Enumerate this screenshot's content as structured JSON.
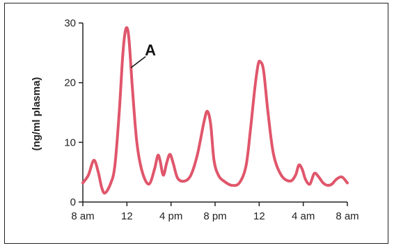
{
  "chart_data": {
    "type": "line",
    "title": "",
    "xlabel": "",
    "ylabel": "(ng/ml plasma)",
    "ylim": [
      0,
      30
    ],
    "xlim": [
      0,
      24
    ],
    "y_ticks": [
      0,
      10,
      20,
      30
    ],
    "x_ticks": [
      {
        "hour": 0,
        "label": "8 am"
      },
      {
        "hour": 4,
        "label": "12"
      },
      {
        "hour": 8,
        "label": "4 pm"
      },
      {
        "hour": 12,
        "label": "8 pm"
      },
      {
        "hour": 16,
        "label": "12"
      },
      {
        "hour": 20,
        "label": "4 am"
      },
      {
        "hour": 24,
        "label": "8 am"
      }
    ],
    "grid": false,
    "line_color": "#e0566b",
    "series": [
      {
        "x": [
          0,
          0.5,
          1.0,
          1.4,
          1.7,
          2.0,
          2.5,
          2.9,
          3.3,
          3.6,
          3.8,
          4.0,
          4.2,
          4.5,
          4.9,
          5.4,
          6.0,
          6.5,
          6.8,
          7.0,
          7.3,
          7.6,
          7.9,
          8.2,
          8.6,
          9.2,
          9.8,
          10.4,
          11.0,
          11.3,
          11.6,
          11.9,
          12.3,
          12.8,
          13.5,
          14.2,
          14.8,
          15.2,
          15.6,
          15.9,
          16.1,
          16.4,
          16.8,
          17.3,
          18.0,
          18.8,
          19.3,
          19.6,
          19.9,
          20.2,
          20.6,
          21.0,
          21.4,
          21.8,
          22.2,
          22.6,
          23.0,
          23.5,
          24.0
        ],
        "y": [
          3.2,
          4.5,
          7.0,
          5.0,
          2.5,
          1.5,
          3.0,
          6.0,
          15.0,
          24.0,
          28.0,
          29.2,
          27.0,
          19.0,
          10.0,
          5.0,
          3.0,
          5.5,
          7.8,
          7.0,
          4.5,
          6.5,
          8.0,
          6.5,
          4.0,
          3.5,
          4.5,
          8.0,
          13.5,
          15.2,
          13.0,
          7.0,
          4.5,
          3.5,
          2.8,
          3.2,
          6.0,
          12.0,
          19.0,
          23.0,
          23.5,
          22.0,
          15.0,
          8.0,
          4.5,
          3.5,
          4.5,
          6.2,
          5.5,
          3.8,
          3.0,
          4.8,
          4.2,
          3.2,
          2.8,
          3.0,
          3.8,
          4.2,
          3.2
        ]
      }
    ],
    "annotations": [
      {
        "text": "A",
        "points_to": {
          "x": 4.3,
          "y": 22.5
        }
      }
    ]
  }
}
